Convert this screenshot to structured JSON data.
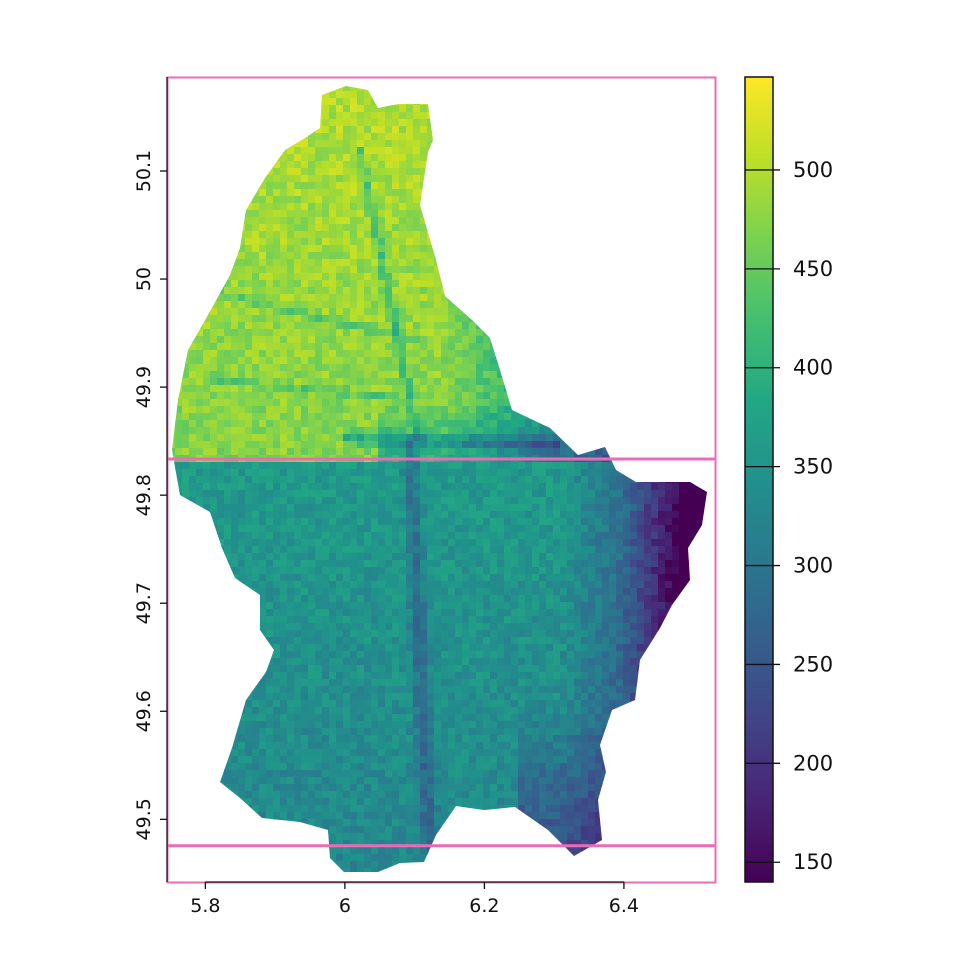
{
  "chart_data": {
    "type": "heatmap",
    "title": "",
    "xlabel": "",
    "ylabel": "",
    "xlim": [
      5.745,
      6.532
    ],
    "ylim": [
      49.442,
      50.187
    ],
    "x_ticks": [
      {
        "value": 5.8,
        "label": "5.8"
      },
      {
        "value": 6.0,
        "label": "6"
      },
      {
        "value": 6.2,
        "label": "6.2"
      },
      {
        "value": 6.4,
        "label": "6.4"
      }
    ],
    "y_ticks": [
      {
        "value": 49.5,
        "label": "49.5"
      },
      {
        "value": 49.6,
        "label": "49.6"
      },
      {
        "value": 49.7,
        "label": "49.7"
      },
      {
        "value": 49.8,
        "label": "49.8"
      },
      {
        "value": 49.9,
        "label": "49.9"
      },
      {
        "value": 50.0,
        "label": "50"
      },
      {
        "value": 50.1,
        "label": "50.1"
      }
    ],
    "colorbar": {
      "palette": "viridis",
      "range": [
        140,
        547
      ],
      "ticks": [
        {
          "value": 150,
          "label": "150"
        },
        {
          "value": 200,
          "label": "200"
        },
        {
          "value": 250,
          "label": "250"
        },
        {
          "value": 300,
          "label": "300"
        },
        {
          "value": 350,
          "label": "350"
        },
        {
          "value": 400,
          "label": "400"
        },
        {
          "value": 450,
          "label": "450"
        },
        {
          "value": 500,
          "label": "500"
        }
      ]
    },
    "elevation_raster": {
      "description_of_values": "elevation in colorbar units",
      "high_north": 500,
      "central_plateau": 360,
      "south": 320,
      "east_valleys": 180
    },
    "reference_lines": [
      {
        "orientation": "horizontal",
        "value": 49.8335,
        "color": "#e96cb5"
      },
      {
        "orientation": "horizontal",
        "value": 49.4756,
        "color": "#e96cb5"
      }
    ],
    "box_color": "#e96cb5"
  }
}
